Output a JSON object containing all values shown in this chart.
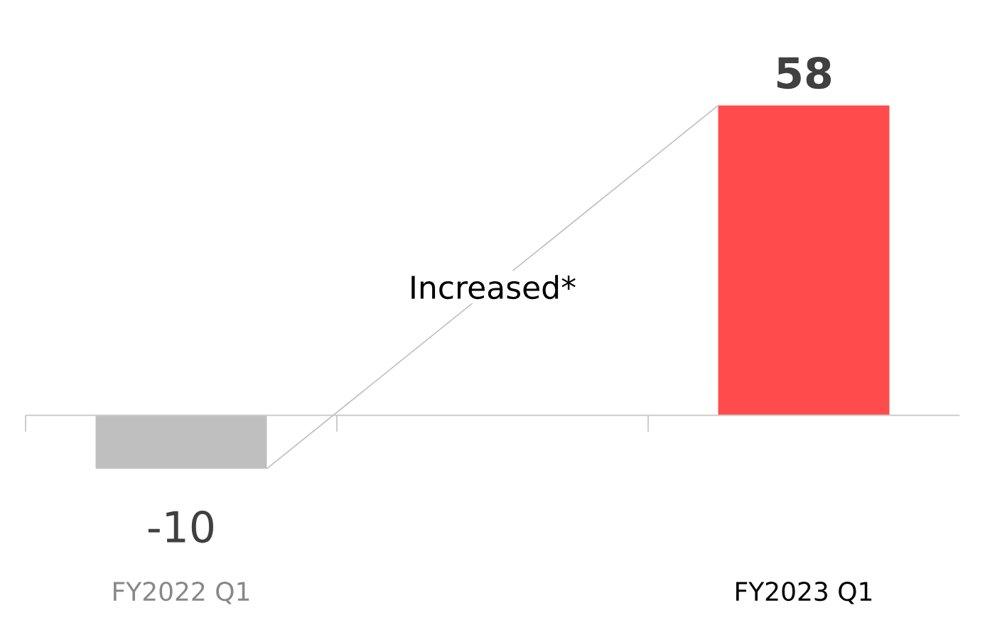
{
  "chart_data": {
    "type": "bar",
    "categories": [
      "FY2022 Q1",
      null,
      "FY2023 Q1"
    ],
    "values": [
      -10,
      null,
      58
    ],
    "colors": [
      "#bfbfbf",
      null,
      "#ff4b4b"
    ],
    "data_labels": true,
    "annotations": [
      "Increased*"
    ]
  }
}
